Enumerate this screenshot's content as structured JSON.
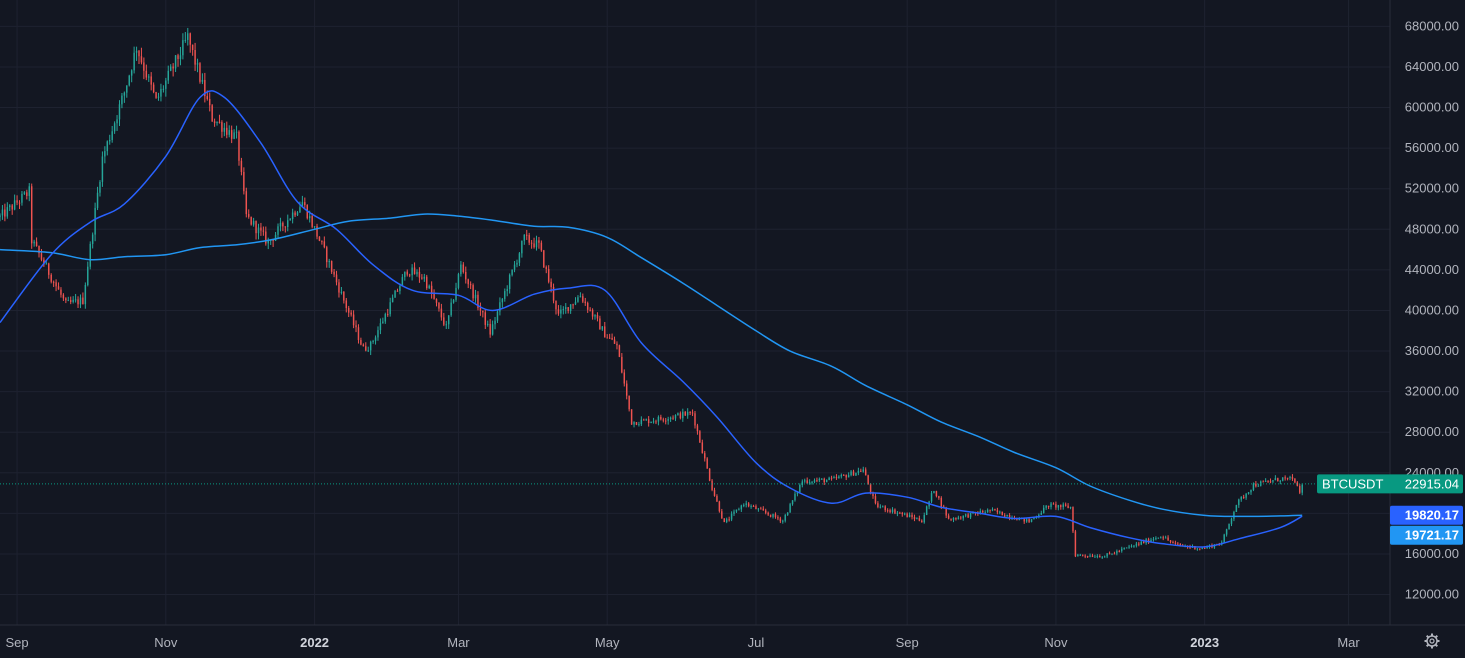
{
  "symbol_label": "BTCUSDT",
  "last_price_label": "22915.04",
  "ma_fast_label": "19721.17",
  "ma_slow_label": "19820.17",
  "settings_icon": "gear-icon",
  "colors": {
    "background": "#131722",
    "grid": "#1e2230",
    "up": "#26a69a",
    "down": "#ef5350",
    "ma_fast": "#2962ff",
    "ma_slow": "#2196f3",
    "price_tag": "#089981",
    "ma_fast_tag": "#2962ff",
    "ma_slow_tag": "#2196f3",
    "axis_text": "#b2b5be"
  },
  "chart_data": {
    "type": "candlestick",
    "interval": "1D",
    "x_range": [
      "2021-08-25",
      "2023-03-18"
    ],
    "ylim": [
      9000,
      70600
    ],
    "grid": true,
    "x_tick_labels": [
      {
        "date": "2021-09-01",
        "label": "Sep",
        "bold": false
      },
      {
        "date": "2021-11-01",
        "label": "Nov",
        "bold": false
      },
      {
        "date": "2022-01-01",
        "label": "2022",
        "bold": true
      },
      {
        "date": "2022-03-01",
        "label": "Mar",
        "bold": false
      },
      {
        "date": "2022-05-01",
        "label": "May",
        "bold": false
      },
      {
        "date": "2022-07-01",
        "label": "Jul",
        "bold": false
      },
      {
        "date": "2022-09-01",
        "label": "Sep",
        "bold": false
      },
      {
        "date": "2022-11-01",
        "label": "Nov",
        "bold": false
      },
      {
        "date": "2023-01-01",
        "label": "2023",
        "bold": true
      },
      {
        "date": "2023-03-01",
        "label": "Mar",
        "bold": false
      }
    ],
    "y_tick_labels": [
      "12000.00",
      "16000.00",
      "20000.00",
      "24000.00",
      "28000.00",
      "32000.00",
      "36000.00",
      "40000.00",
      "44000.00",
      "48000.00",
      "52000.00",
      "56000.00",
      "60000.00",
      "64000.00",
      "68000.00"
    ],
    "y_tick_values": [
      12000,
      16000,
      20000,
      24000,
      28000,
      32000,
      36000,
      40000,
      44000,
      48000,
      52000,
      56000,
      60000,
      64000,
      68000
    ],
    "close_anchors": [
      [
        "2021-08-25",
        49200
      ],
      [
        "2021-09-06",
        51700
      ],
      [
        "2021-09-07",
        46900
      ],
      [
        "2021-09-21",
        40600
      ],
      [
        "2021-09-28",
        41000
      ],
      [
        "2021-10-06",
        55000
      ],
      [
        "2021-10-15",
        61500
      ],
      [
        "2021-10-20",
        66000
      ],
      [
        "2021-10-28",
        60600
      ],
      [
        "2021-11-10",
        66900
      ],
      [
        "2021-11-20",
        59000
      ],
      [
        "2021-11-30",
        57000
      ],
      [
        "2021-12-04",
        49300
      ],
      [
        "2021-12-13",
        46700
      ],
      [
        "2021-12-27",
        50700
      ],
      [
        "2022-01-04",
        46400
      ],
      [
        "2022-01-21",
        36200
      ],
      [
        "2022-01-24",
        36600
      ],
      [
        "2022-02-08",
        44000
      ],
      [
        "2022-02-15",
        43200
      ],
      [
        "2022-02-24",
        38300
      ],
      [
        "2022-03-02",
        44400
      ],
      [
        "2022-03-14",
        37800
      ],
      [
        "2022-03-28",
        47100
      ],
      [
        "2022-04-03",
        46400
      ],
      [
        "2022-04-11",
        39500
      ],
      [
        "2022-04-20",
        41500
      ],
      [
        "2022-04-30",
        37700
      ],
      [
        "2022-05-05",
        36500
      ],
      [
        "2022-05-11",
        29000
      ],
      [
        "2022-05-20",
        29200
      ],
      [
        "2022-06-05",
        29900
      ],
      [
        "2022-06-13",
        22500
      ],
      [
        "2022-06-18",
        19000
      ],
      [
        "2022-06-26",
        21000
      ],
      [
        "2022-07-12",
        19300
      ],
      [
        "2022-07-20",
        23200
      ],
      [
        "2022-08-01",
        23300
      ],
      [
        "2022-08-14",
        24300
      ],
      [
        "2022-08-19",
        20800
      ],
      [
        "2022-09-07",
        19300
      ],
      [
        "2022-09-12",
        22400
      ],
      [
        "2022-09-18",
        19400
      ],
      [
        "2022-10-05",
        20300
      ],
      [
        "2022-10-21",
        19200
      ],
      [
        "2022-10-29",
        20800
      ],
      [
        "2022-11-07",
        20600
      ],
      [
        "2022-11-09",
        15900
      ],
      [
        "2022-11-21",
        15800
      ],
      [
        "2022-12-05",
        17000
      ],
      [
        "2022-12-14",
        17800
      ],
      [
        "2022-12-20",
        16900
      ],
      [
        "2022-12-31",
        16550
      ],
      [
        "2023-01-08",
        17100
      ],
      [
        "2023-01-14",
        20900
      ],
      [
        "2023-01-21",
        22800
      ],
      [
        "2023-02-02",
        23450
      ],
      [
        "2023-02-07",
        23250
      ],
      [
        "2023-02-09",
        21800
      ],
      [
        "2023-02-10",
        22915
      ]
    ],
    "ma_fast": {
      "label": "19721.17",
      "points": [
        [
          "2021-08-25",
          38800
        ],
        [
          "2021-09-15",
          45500
        ],
        [
          "2021-10-01",
          48700
        ],
        [
          "2021-10-15",
          50500
        ],
        [
          "2021-11-01",
          55200
        ],
        [
          "2021-11-15",
          61000
        ],
        [
          "2021-11-25",
          61000
        ],
        [
          "2021-12-10",
          56500
        ],
        [
          "2021-12-25",
          50700
        ],
        [
          "2022-01-10",
          48000
        ],
        [
          "2022-01-25",
          44500
        ],
        [
          "2022-02-10",
          42000
        ],
        [
          "2022-03-01",
          41500
        ],
        [
          "2022-03-15",
          40000
        ],
        [
          "2022-04-01",
          41600
        ],
        [
          "2022-04-15",
          42200
        ],
        [
          "2022-04-30",
          42000
        ],
        [
          "2022-05-15",
          36800
        ],
        [
          "2022-06-01",
          33000
        ],
        [
          "2022-06-15",
          29500
        ],
        [
          "2022-07-01",
          25000
        ],
        [
          "2022-07-15",
          22500
        ],
        [
          "2022-08-01",
          21000
        ],
        [
          "2022-08-15",
          22000
        ],
        [
          "2022-09-01",
          21600
        ],
        [
          "2022-09-15",
          20600
        ],
        [
          "2022-10-01",
          20000
        ],
        [
          "2022-10-15",
          19500
        ],
        [
          "2022-11-01",
          19700
        ],
        [
          "2022-11-15",
          18600
        ],
        [
          "2022-12-01",
          17600
        ],
        [
          "2022-12-15",
          17000
        ],
        [
          "2023-01-01",
          16700
        ],
        [
          "2023-01-15",
          17500
        ],
        [
          "2023-02-01",
          18600
        ],
        [
          "2023-02-10",
          19721
        ]
      ]
    },
    "ma_slow": {
      "label": "19820.17",
      "points": [
        [
          "2021-08-25",
          46000
        ],
        [
          "2021-09-15",
          45700
        ],
        [
          "2021-10-01",
          45000
        ],
        [
          "2021-10-15",
          45300
        ],
        [
          "2021-11-01",
          45500
        ],
        [
          "2021-11-15",
          46200
        ],
        [
          "2021-12-01",
          46500
        ],
        [
          "2021-12-15",
          47000
        ],
        [
          "2022-01-01",
          48000
        ],
        [
          "2022-01-15",
          48800
        ],
        [
          "2022-02-01",
          49100
        ],
        [
          "2022-02-15",
          49500
        ],
        [
          "2022-03-01",
          49300
        ],
        [
          "2022-03-15",
          48900
        ],
        [
          "2022-04-01",
          48300
        ],
        [
          "2022-04-15",
          48200
        ],
        [
          "2022-05-01",
          47200
        ],
        [
          "2022-05-15",
          45200
        ],
        [
          "2022-06-01",
          42700
        ],
        [
          "2022-06-15",
          40500
        ],
        [
          "2022-07-01",
          38000
        ],
        [
          "2022-07-15",
          36000
        ],
        [
          "2022-08-01",
          34500
        ],
        [
          "2022-08-15",
          32600
        ],
        [
          "2022-09-01",
          30700
        ],
        [
          "2022-09-15",
          29000
        ],
        [
          "2022-10-01",
          27500
        ],
        [
          "2022-10-15",
          26000
        ],
        [
          "2022-11-01",
          24500
        ],
        [
          "2022-11-15",
          22700
        ],
        [
          "2022-12-01",
          21300
        ],
        [
          "2022-12-15",
          20400
        ],
        [
          "2023-01-01",
          19800
        ],
        [
          "2023-01-15",
          19700
        ],
        [
          "2023-02-01",
          19750
        ],
        [
          "2023-02-10",
          19820
        ]
      ]
    }
  }
}
